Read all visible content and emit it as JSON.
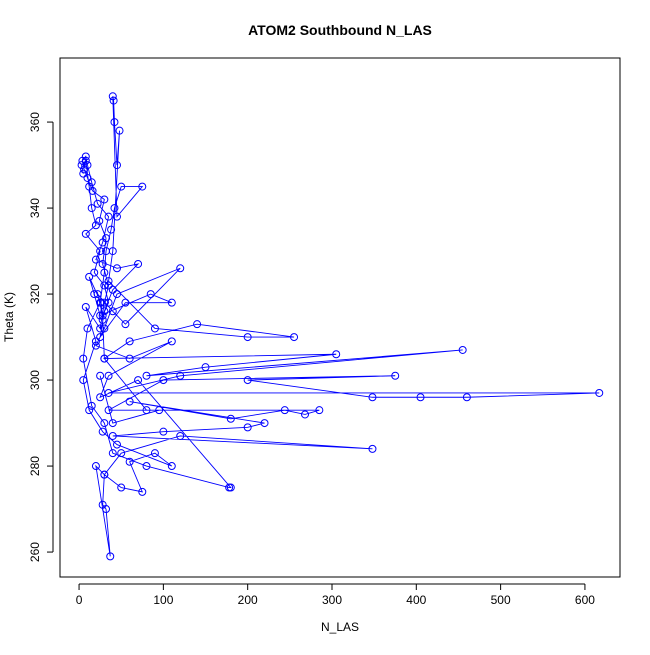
{
  "chart_data": {
    "type": "line",
    "title": "ATOM2 Southbound N_LAS",
    "x_label": "N_LAS",
    "y_label": "Theta (K)",
    "color": "#0000ff",
    "markers": "circle",
    "xlim": [
      -22.6,
      641.6
    ],
    "ylim": [
      254.2,
      374.9
    ],
    "xticks": [
      0,
      100,
      200,
      300,
      400,
      500,
      600
    ],
    "yticks": [
      260,
      280,
      300,
      320,
      340,
      360
    ],
    "x": [
      5,
      3,
      8,
      12,
      15,
      20,
      8,
      25,
      18,
      30,
      35,
      28,
      22,
      40,
      55,
      120,
      45,
      30,
      20,
      60,
      110,
      35,
      25,
      70,
      180,
      178,
      80,
      40,
      30,
      15,
      5,
      10,
      25,
      30,
      32,
      38,
      42,
      50,
      75,
      45,
      40,
      41,
      42,
      45,
      48,
      40,
      35,
      90,
      200,
      255,
      140,
      60,
      30,
      305,
      150,
      80,
      455,
      120,
      35,
      617,
      460,
      405,
      348,
      200,
      375,
      100,
      35,
      285,
      268,
      244,
      180,
      60,
      220,
      200,
      100,
      40,
      348,
      120,
      50,
      30,
      20,
      37,
      32,
      28,
      30,
      50,
      75,
      60,
      90,
      110,
      45,
      28,
      12,
      5,
      20,
      8,
      25,
      30,
      35,
      28,
      32,
      24,
      30,
      16,
      10,
      6,
      4,
      8,
      10,
      15,
      22,
      35,
      28,
      20,
      45,
      70,
      40,
      30,
      25,
      55,
      110,
      85,
      25,
      18,
      12,
      26,
      28,
      30,
      80,
      95,
      40,
      25
    ],
    "y": [
      348,
      350,
      351,
      345,
      340,
      336,
      334,
      330,
      325,
      322,
      318,
      315,
      320,
      316,
      313,
      326,
      320,
      312,
      308,
      305,
      309,
      301,
      296,
      300,
      275,
      275,
      280,
      283,
      290,
      294,
      305,
      312,
      318,
      325,
      330,
      335,
      340,
      345,
      345,
      338,
      366,
      365,
      360,
      350,
      358,
      330,
      323,
      312,
      310,
      310,
      313,
      309,
      305,
      306,
      303,
      301,
      307,
      301,
      297,
      297,
      296,
      296,
      296,
      300,
      301,
      300,
      293,
      293,
      292,
      293,
      291,
      295,
      290,
      289,
      288,
      287,
      284,
      287,
      283,
      278,
      280,
      259,
      270,
      271,
      278,
      275,
      274,
      281,
      283,
      280,
      285,
      288,
      293,
      300,
      309,
      317,
      312,
      318,
      322,
      327,
      333,
      337,
      342,
      344,
      347,
      349,
      351,
      352,
      350,
      346,
      341,
      338,
      332,
      328,
      326,
      327,
      321,
      316,
      310,
      318,
      318,
      320,
      315,
      320,
      324,
      318,
      314,
      305,
      293,
      293,
      290,
      301
    ]
  }
}
